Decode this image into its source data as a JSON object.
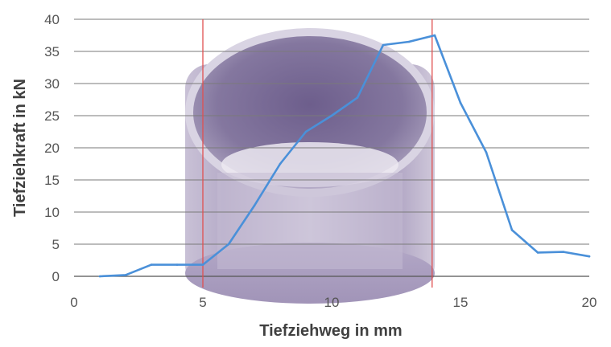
{
  "chart_data": {
    "type": "line",
    "title": "",
    "xlabel": "Tiefziehweg in mm",
    "ylabel": "Tiefziehkraft in kN",
    "xlim": [
      0,
      20
    ],
    "ylim": [
      0,
      40
    ],
    "x_ticks": [
      0,
      5,
      10,
      15,
      20
    ],
    "y_ticks": [
      0,
      5,
      10,
      15,
      20,
      25,
      30,
      35,
      40
    ],
    "grid": "horizontal",
    "legend": "none",
    "series": [
      {
        "color": "#4a90d9",
        "x": [
          1,
          2,
          3,
          4,
          5,
          6,
          7,
          8,
          9,
          10,
          11,
          12,
          13,
          14,
          15,
          16,
          17,
          18,
          19,
          20
        ],
        "y": [
          0,
          0.2,
          1.8,
          1.8,
          1.8,
          5,
          11,
          17.5,
          22.5,
          25,
          27.8,
          36,
          36.5,
          37.5,
          27,
          19.3,
          7.2,
          3.7,
          3.8,
          3.1
        ]
      }
    ],
    "vertical_markers": [
      {
        "x": 5,
        "color": "#e05050"
      },
      {
        "x": 13.9,
        "color": "#e05050"
      }
    ],
    "background_image": "drawn-cup-photo"
  }
}
